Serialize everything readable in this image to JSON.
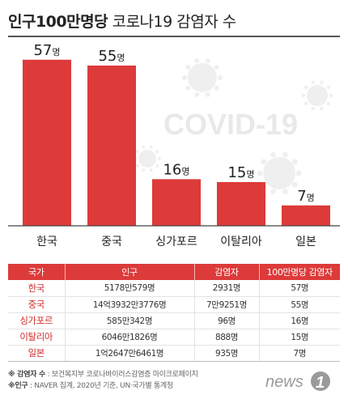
{
  "title": {
    "bold": "인구100만명당",
    "rest": " 코로나19 감염자 수"
  },
  "watermark": "COVID-19",
  "chart_data": {
    "type": "bar",
    "title": "인구100만명당 코로나19 감염자 수",
    "categories": [
      "한국",
      "중국",
      "싱가포르",
      "이탈리아",
      "일본"
    ],
    "values": [
      57,
      55,
      16,
      15,
      7
    ],
    "unit": "명",
    "ylim": [
      0,
      60
    ],
    "grid": false,
    "color": "#dd3a3a"
  },
  "table": {
    "headers": [
      "국가",
      "인구",
      "감염자",
      "100만명당 감염자"
    ],
    "rows": [
      {
        "country": "한국",
        "population": "5178만579명",
        "infected": "2931명",
        "per_million": "57명"
      },
      {
        "country": "중국",
        "population": "14억3932만3776명",
        "infected": "7만9251명",
        "per_million": "55명"
      },
      {
        "country": "싱가포르",
        "population": "585만342명",
        "infected": "96명",
        "per_million": "16명"
      },
      {
        "country": "이탈리아",
        "population": "6046만1826명",
        "infected": "888명",
        "per_million": "15명"
      },
      {
        "country": "일본",
        "population": "1억2647만6461명",
        "infected": "935명",
        "per_million": "7명"
      }
    ]
  },
  "notes": [
    {
      "label": "※ 감염자 수",
      "text": " : 보건복지부 코로나바이러스감염증 마이크로페이지"
    },
    {
      "label": "※인구",
      "text": " : NAVER 집계, 2020년 기준, UN·국가별 통계청"
    }
  ],
  "logo": {
    "text": "news",
    "number": "1"
  },
  "colors": {
    "bar": "#dd3a3a",
    "header": "#dd3a3a",
    "country_text": "#cf2b2b",
    "watermark": "#e9e9e9"
  }
}
